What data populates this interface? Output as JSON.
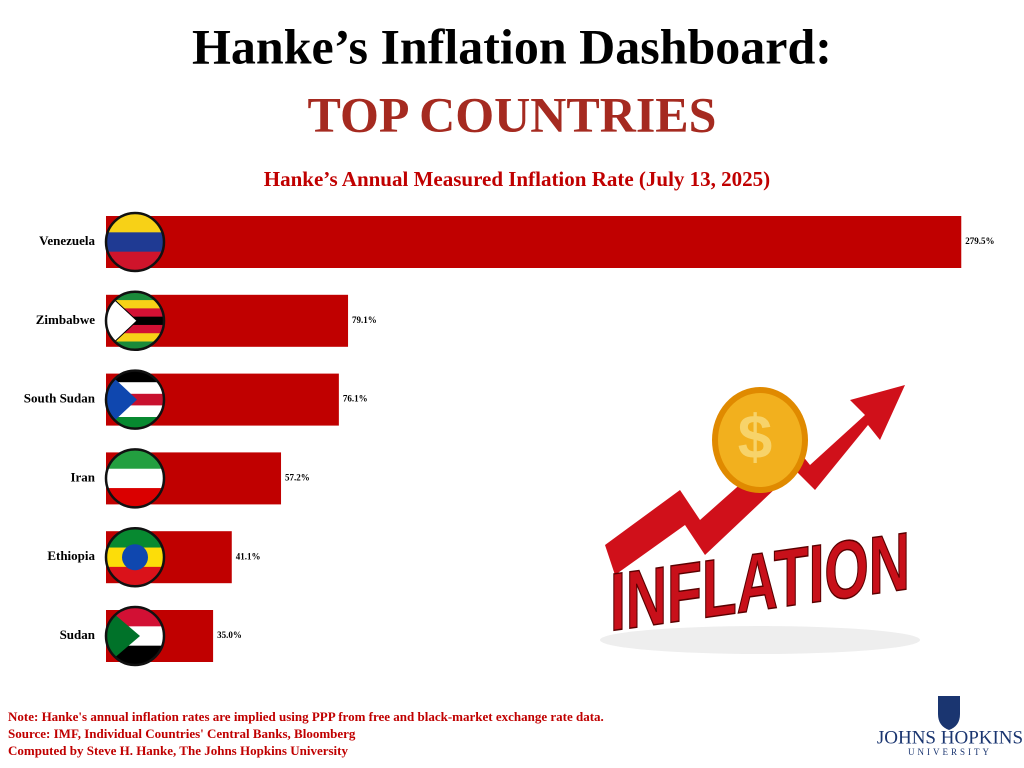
{
  "title": "Hanke’s Inflation Dashboard:",
  "title_highlight": "TOP COUNTRIES",
  "chart_data": {
    "type": "hbar",
    "title": "Hanke’s Annual Measured Inflation Rate (July 13, 2025)",
    "categories": [
      "Venezuela",
      "Zimbabwe",
      "South Sudan",
      "Iran",
      "Ethiopia",
      "Sudan"
    ],
    "values": [
      279.5,
      79.1,
      76.1,
      57.2,
      41.1,
      35.0
    ],
    "value_labels": [
      "279.5%",
      "79.1%",
      "76.1%",
      "57.2%",
      "41.1%",
      "35.0%"
    ],
    "color": "#c00000"
  },
  "graphic_text": "INFLATION",
  "notes": [
    "Note: Hanke's annual inflation rates are implied using PPP from free and black-market exchange rate data.",
    "Source: IMF, Individual Countries' Central Banks, Bloomberg",
    "Computed by Steve H. Hanke, The Johns Hopkins University"
  ],
  "logo": {
    "name": "JOHNS HOPKINS",
    "sub": "UNIVERSITY"
  }
}
